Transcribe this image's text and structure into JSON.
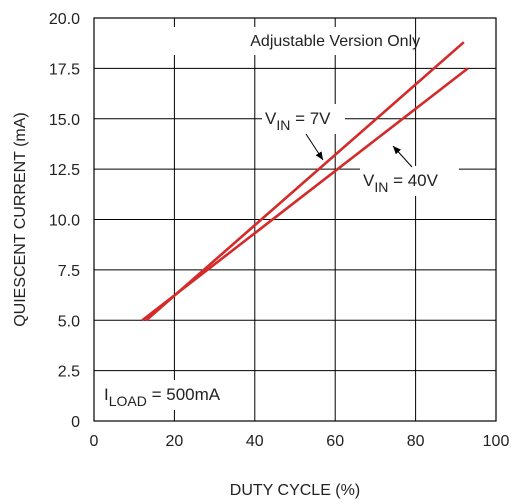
{
  "chart_data": {
    "type": "line",
    "title": "Adjustable Version Only",
    "xlabel": "DUTY CYCLE (%)",
    "ylabel": "QUIESCENT CURRENT  (mA)",
    "xlim": [
      0,
      100
    ],
    "ylim": [
      0,
      20
    ],
    "grid": true,
    "xticks": [
      "0",
      "20",
      "40",
      "60",
      "80",
      "100"
    ],
    "yticks": [
      "0",
      "2.5",
      "5.0",
      "7.5",
      "10.0",
      "12.5",
      "15.0",
      "17.5",
      "20.0"
    ],
    "series": [
      {
        "name": "VIN = 7V",
        "color": "#d42a2a",
        "points": [
          [
            13,
            5.0
          ],
          [
            92,
            18.8
          ]
        ]
      },
      {
        "name": "VIN = 40V",
        "color": "#d42a2a",
        "points": [
          [
            12,
            5.0
          ],
          [
            93,
            17.5
          ]
        ]
      }
    ],
    "annotations": {
      "vin7": {
        "main": "V",
        "sub": "IN",
        "rest": " = 7V"
      },
      "vin40": {
        "main": "V",
        "sub": "IN",
        "rest": " = 40V"
      },
      "iload": {
        "main": "I",
        "sub": "LOAD",
        "rest": " = 500mA"
      }
    }
  }
}
